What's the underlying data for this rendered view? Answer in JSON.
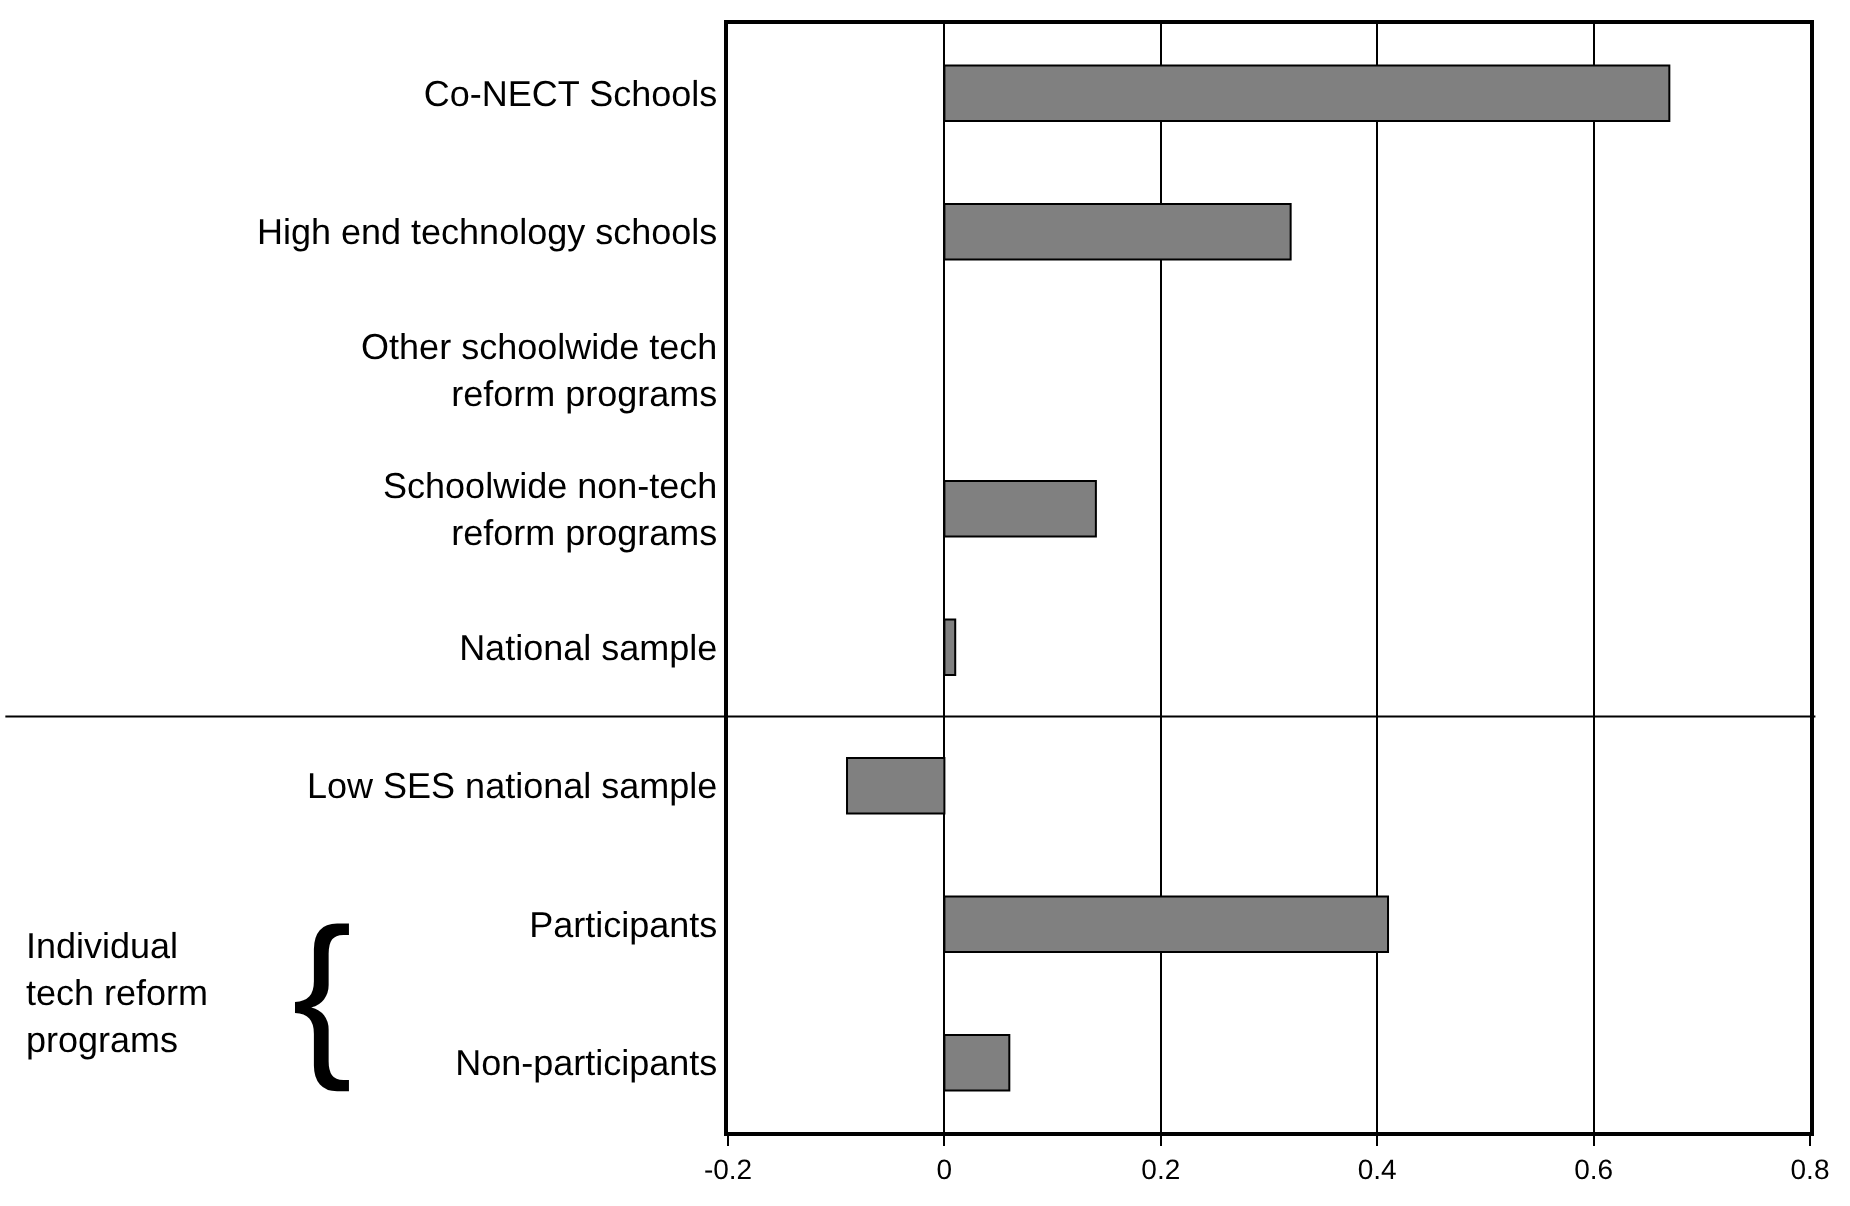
{
  "chart_data": {
    "type": "bar",
    "orientation": "horizontal",
    "categories": [
      "Co-NECT Schools",
      "High end technology schools",
      "Other schoolwide tech\nreform programs",
      "Schoolwide non-tech\nreform programs",
      "National sample",
      "Low SES national sample",
      "Participants",
      "Non-participants"
    ],
    "values": [
      0.67,
      0.32,
      null,
      0.14,
      0.01,
      -0.09,
      0.41,
      0.06
    ],
    "color": "#808080",
    "xlim": [
      -0.2,
      0.8
    ],
    "xticks": [
      -0.2,
      0,
      0.2,
      0.4,
      0.6,
      0.8
    ],
    "grid": "x",
    "annotations": [
      "Individual\ntech reform\nprograms",
      "{"
    ]
  }
}
